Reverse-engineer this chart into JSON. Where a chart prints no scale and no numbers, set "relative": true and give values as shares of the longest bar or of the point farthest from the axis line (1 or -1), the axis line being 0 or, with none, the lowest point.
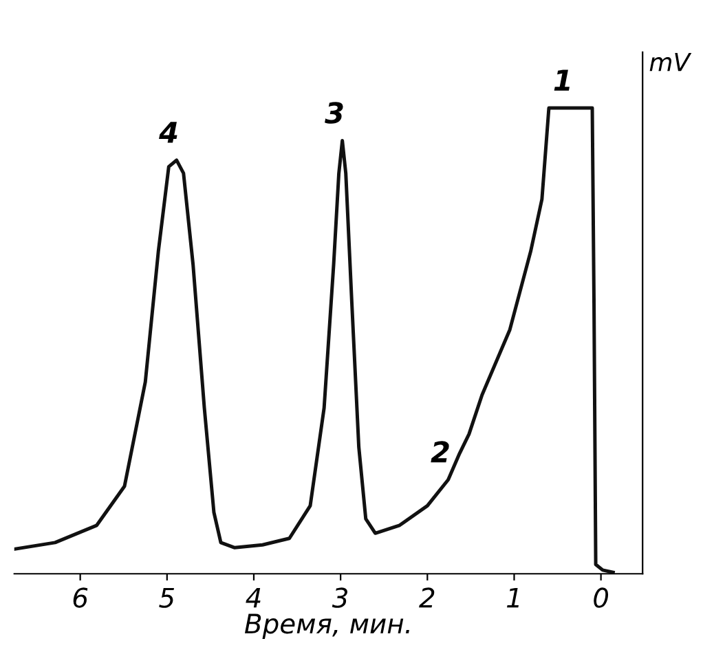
{
  "chart_data": {
    "type": "line",
    "relative": true,
    "xlabel": "Время, мин.",
    "ylabel": "mV",
    "xlim": [
      6.76,
      -0.48
    ],
    "xticks": [
      0,
      1,
      2,
      3,
      4,
      5,
      6
    ],
    "grid": false,
    "legend": false,
    "marker": "none",
    "line_style": "solid",
    "series": [
      {
        "color": "#111111",
        "x": [
          6.76,
          6.29,
          5.81,
          5.49,
          5.25,
          5.1,
          4.98,
          4.89,
          4.81,
          4.7,
          4.57,
          4.46,
          4.38,
          4.22,
          3.9,
          3.59,
          3.35,
          3.19,
          3.08,
          3.02,
          2.98,
          2.94,
          2.87,
          2.79,
          2.71,
          2.6,
          2.32,
          2.0,
          1.76,
          1.63,
          1.52,
          1.37,
          1.05,
          0.81,
          0.68,
          0.6,
          0.1,
          0.08,
          0.06,
          -0.02,
          -0.14
        ],
        "values": [
          0.053,
          0.067,
          0.104,
          0.188,
          0.412,
          0.692,
          0.874,
          0.888,
          0.86,
          0.664,
          0.356,
          0.132,
          0.067,
          0.056,
          0.062,
          0.076,
          0.146,
          0.356,
          0.664,
          0.86,
          0.93,
          0.86,
          0.58,
          0.272,
          0.118,
          0.087,
          0.104,
          0.146,
          0.202,
          0.258,
          0.3,
          0.384,
          0.524,
          0.692,
          0.804,
          1.0,
          1.0,
          0.58,
          0.02,
          0.008,
          0.003
        ]
      }
    ],
    "annotations": [
      {
        "text": "1",
        "x": 0.35,
        "y": 1.0
      },
      {
        "text": "2",
        "x": 1.76,
        "y": 0.202
      },
      {
        "text": "3",
        "x": 2.98,
        "y": 0.93
      },
      {
        "text": "4",
        "x": 4.89,
        "y": 0.888
      }
    ]
  }
}
